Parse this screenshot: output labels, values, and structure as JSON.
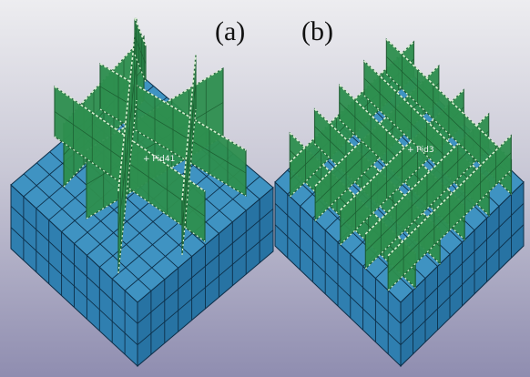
{
  "figure": {
    "panels": [
      {
        "label": "(a)",
        "part_tag": "+ Pid41",
        "lattice": "diagonal-x-braced"
      },
      {
        "label": "(b)",
        "part_tag": "+ Pid3",
        "lattice": "square-grid"
      }
    ],
    "colors": {
      "background_top": "#ededf0",
      "background_bottom": "#8f8db0",
      "base_top": "#3f93c2",
      "base_left": "#2f7fb0",
      "base_right": "#2773a3",
      "base_grid": "#0d2f49",
      "lattice_fill": "#2e8f4f",
      "lattice_dark": "#1c5e31",
      "lattice_edge": "#d8f0d0"
    }
  }
}
